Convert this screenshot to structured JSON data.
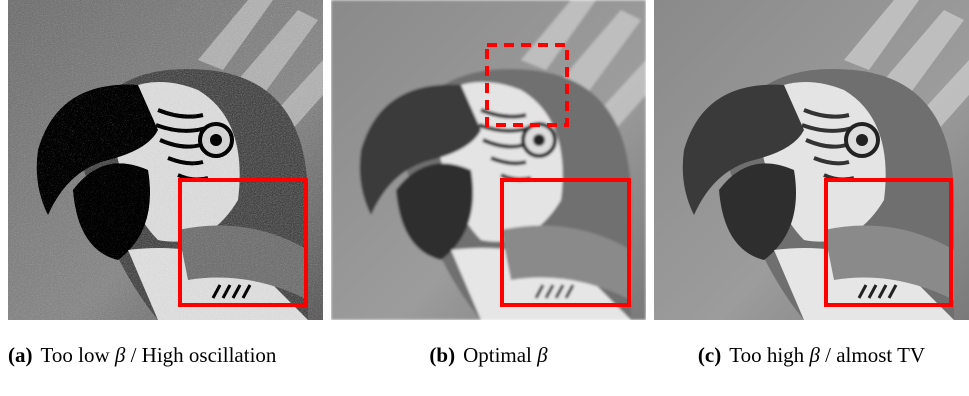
{
  "panels": [
    {
      "label": "(a)",
      "text_before": "Too low ",
      "symbol": "β",
      "text_after": " / High oscillation"
    },
    {
      "label": "(b)",
      "text_before": "Optimal ",
      "symbol": "β"
    },
    {
      "label": "(c)",
      "text_before": "Too high ",
      "symbol": "β",
      "text_after": " / almost TV"
    }
  ]
}
